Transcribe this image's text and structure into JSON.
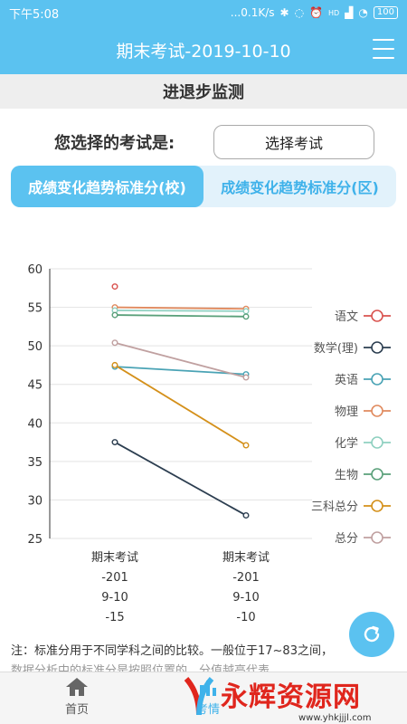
{
  "status_bar": {
    "time": "下午5:08",
    "speed": "...0.1K/s",
    "signal": "HD",
    "battery": "100"
  },
  "app_bar": {
    "title": "期末考试-2019-10-10"
  },
  "section": {
    "title": "进退步监测"
  },
  "select": {
    "label": "您选择的考试是:",
    "button": "选择考试"
  },
  "tabs": [
    {
      "label": "成绩变化趋势标准分(校)",
      "active": true
    },
    {
      "label": "成绩变化趋势标准分(区)",
      "active": false
    }
  ],
  "chart_data": {
    "type": "line",
    "categories": [
      "期末考试\n-201\n9-10\n-15",
      "期末考试\n-201\n9-10\n-10"
    ],
    "category_lines": [
      [
        "期末考试",
        "-201",
        "9-10",
        "-15"
      ],
      [
        "期末考试",
        "-201",
        "9-10",
        "-10"
      ]
    ],
    "ylim": [
      25,
      60
    ],
    "yticks": [
      "60",
      "55",
      "50",
      "45",
      "40",
      "35",
      "30",
      "25"
    ],
    "grid": true,
    "legend_position": "right",
    "series": [
      {
        "name": "语文",
        "color": "#d9534f",
        "values": [
          57.7,
          null
        ]
      },
      {
        "name": "数学(理)",
        "color": "#2c3e50",
        "values": [
          37.5,
          28.0
        ]
      },
      {
        "name": "英语",
        "color": "#4aa3b5",
        "values": [
          47.3,
          46.3
        ]
      },
      {
        "name": "物理",
        "color": "#e08a5e",
        "values": [
          55.0,
          54.8
        ]
      },
      {
        "name": "化学",
        "color": "#8fd0c0",
        "values": [
          54.6,
          54.5
        ]
      },
      {
        "name": "生物",
        "color": "#5aa07a",
        "values": [
          54.0,
          53.8
        ]
      },
      {
        "name": "三科总分",
        "color": "#d4901a",
        "values": [
          47.5,
          37.1
        ]
      },
      {
        "name": "总分",
        "color": "#c0a0a0",
        "values": [
          50.4,
          45.9
        ]
      }
    ]
  },
  "note": {
    "text": "注：标准分用于不同学科之间的比较。一般位于17~83之间，",
    "text2": "数据分析中的标准分是按照位置的，分值越高代表..."
  },
  "bottom_nav": {
    "home": "首页",
    "other": "考情"
  },
  "watermark": {
    "text": "永辉资源网",
    "url": "www.yhkjjjl.com"
  }
}
